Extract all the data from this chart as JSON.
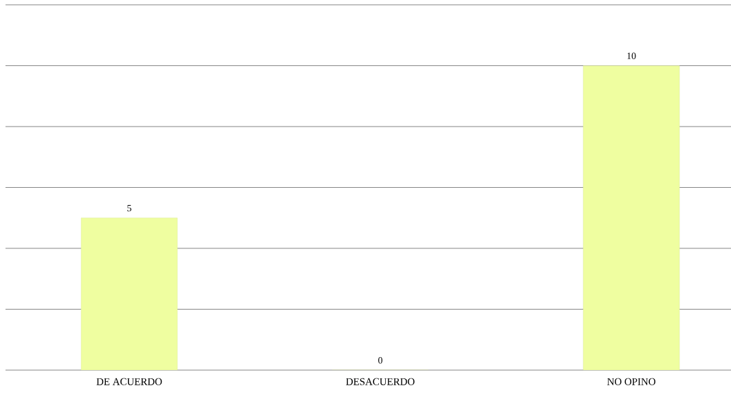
{
  "chart_data": {
    "type": "bar",
    "categories": [
      "DE ACUERDO",
      "DESACUERDO",
      "NO OPINO"
    ],
    "values": [
      5,
      0,
      10
    ],
    "color": "#effea0",
    "data_labels": true,
    "ylim": [
      0,
      12
    ],
    "yticks": [
      {
        "value": 0,
        "label": null
      },
      {
        "value": 2,
        "label": null
      },
      {
        "value": 4,
        "label": null
      },
      {
        "value": 6,
        "label": null
      },
      {
        "value": 8,
        "label": null
      },
      {
        "value": 10,
        "label": null
      },
      {
        "value": 12,
        "label": null
      }
    ],
    "grid": "y",
    "tick_labels": "x"
  }
}
